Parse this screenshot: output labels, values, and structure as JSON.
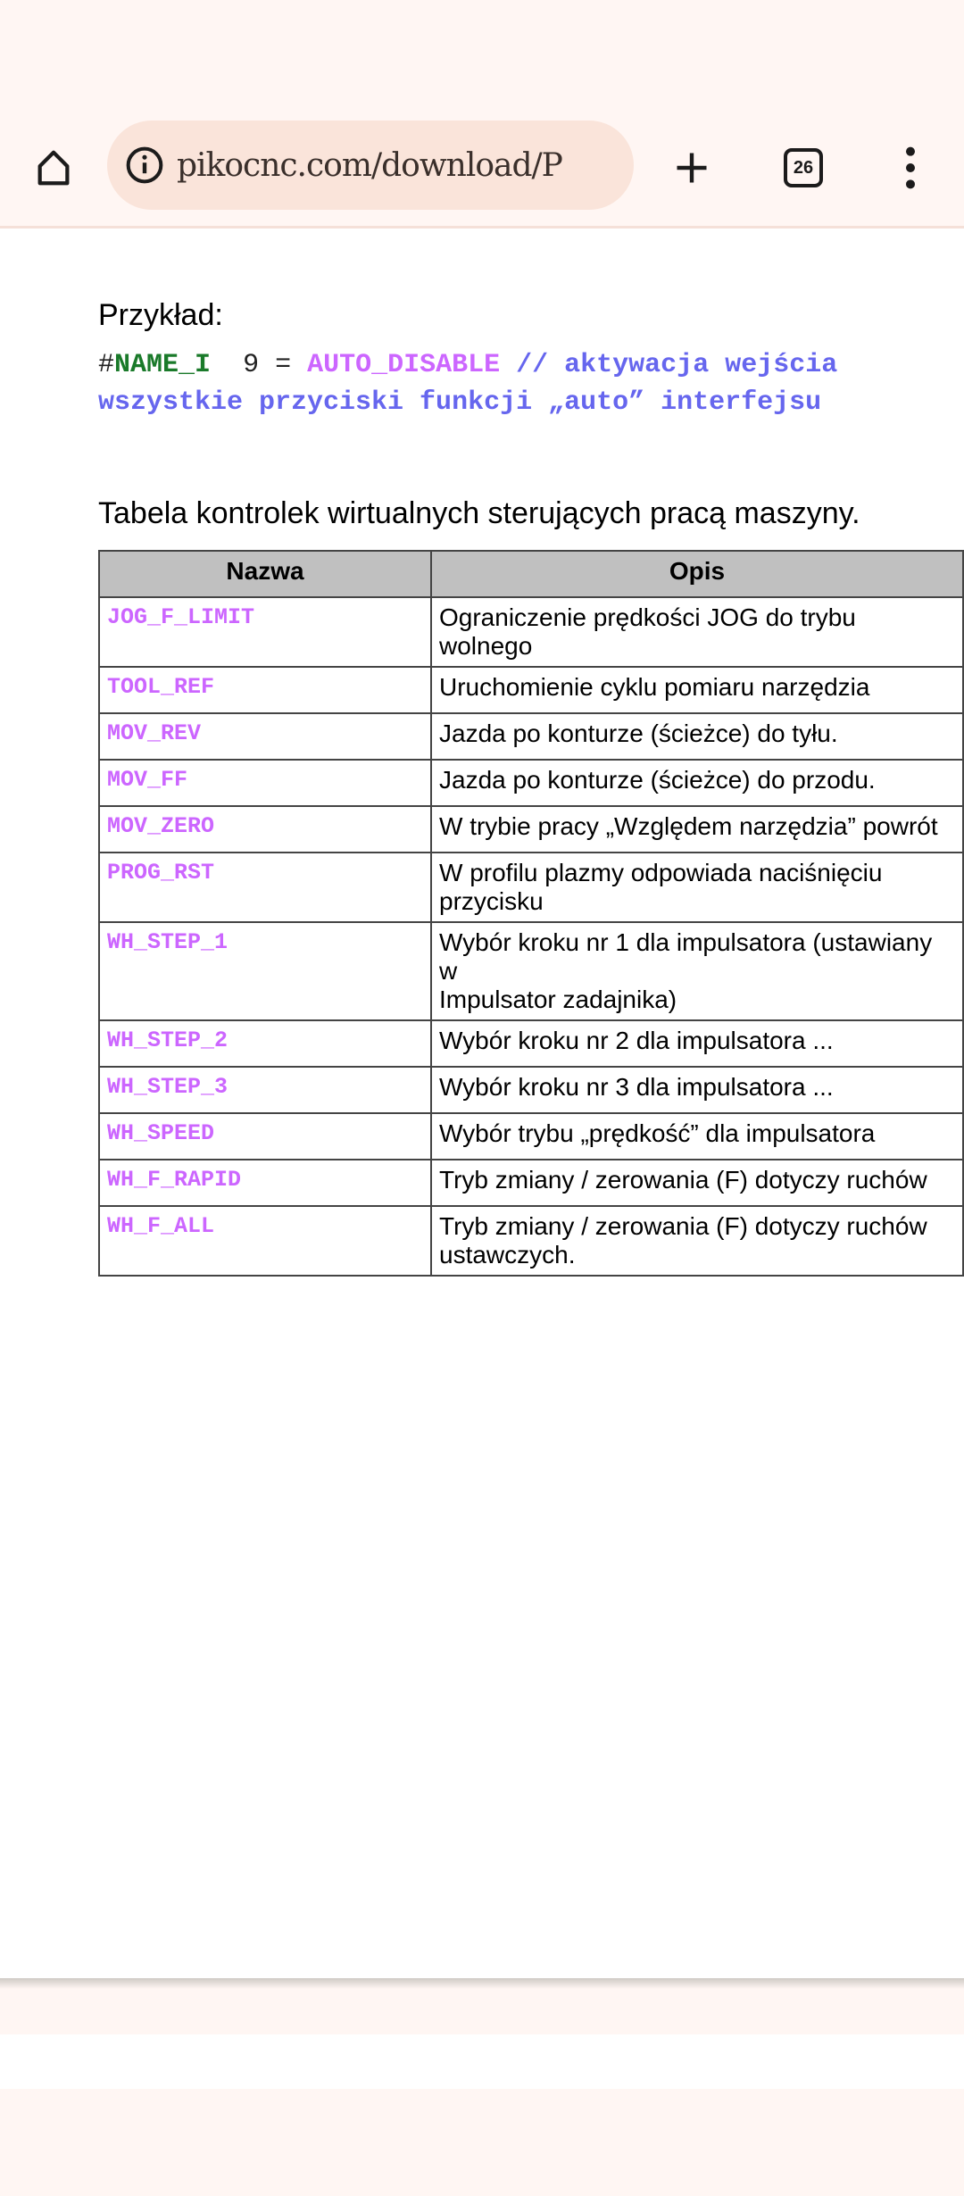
{
  "browser": {
    "url": "pikocnc.com/download/P",
    "tab_count": "26",
    "icons": [
      "home-icon",
      "info-icon",
      "plus-icon",
      "tabs-icon",
      "more-vert-icon"
    ]
  },
  "example": {
    "label": "Przykład:",
    "line1": {
      "hash": "#",
      "name": "NAME_I",
      "num": "9 =",
      "value": "AUTO_DISABLE",
      "comment": "// aktywacja wejścia"
    },
    "line2": "wszystkie przyciski funkcji „auto” interfejsu"
  },
  "table": {
    "title": "Tabela kontrolek wirtualnych sterujących pracą maszyny.",
    "headers": [
      "Nazwa",
      "Opis"
    ],
    "rows": [
      {
        "name": "JOG_F_LIMIT",
        "desc": "Ograniczenie prędkości JOG do trybu wolnego"
      },
      {
        "name": "TOOL_REF",
        "desc": "Uruchomienie cyklu pomiaru narzędzia"
      },
      {
        "name": "MOV_REV",
        "desc": "Jazda po konturze (ścieżce) do tyłu."
      },
      {
        "name": "MOV_FF",
        "desc": "Jazda po konturze (ścieżce) do przodu."
      },
      {
        "name": "MOV_ZERO",
        "desc": "W trybie pracy „Względem narzędzia” powrót"
      },
      {
        "name": "PROG_RST",
        "desc": "W profilu plazmy odpowiada naciśnięciu przycisku"
      },
      {
        "name": "WH_STEP_1",
        "desc": "Wybór kroku nr 1 dla impulsatora (ustawiany w",
        "desc2": "Impulsator zadajnika)"
      },
      {
        "name": "WH_STEP_2",
        "desc": "Wybór kroku nr 2 dla impulsatora ..."
      },
      {
        "name": "WH_STEP_3",
        "desc": "Wybór kroku nr 3 dla impulsatora ..."
      },
      {
        "name": "WH_SPEED",
        "desc": "Wybór trybu „prędkość” dla impulsatora"
      },
      {
        "name": "WH_F_RAPID",
        "desc": "Tryb zmiany / zerowania (F) dotyczy ruchów"
      },
      {
        "name": "WH_F_ALL",
        "desc": "Tryb zmiany / zerowania (F) dotyczy ruchów",
        "desc2": "ustawczych."
      }
    ]
  },
  "colors": {
    "code_name": "#cc66ff",
    "comment": "#6666ee",
    "identifier": "#1a7a2a",
    "toolbar_bg": "#fff6f3",
    "url_bg": "#fae4da"
  }
}
